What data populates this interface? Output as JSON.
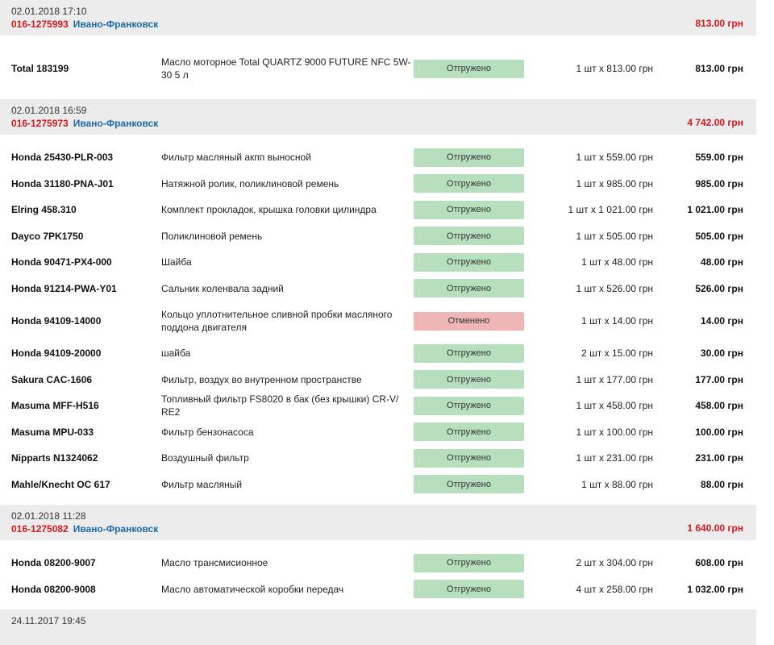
{
  "orders": [
    {
      "date": "02.01.2018 17:10",
      "id": "016-1275993",
      "city": "Ивано-Франковск",
      "total": "813.00 грн",
      "items": [
        {
          "part": "Total 183199",
          "desc": "Масло моторное Total QUARTZ 9000 FUTURE NFC 5W-30 5 л",
          "status": "Отгружено",
          "status_type": "ok",
          "qty": "1 шт x 813.00 грн",
          "sum": "813.00 грн"
        }
      ]
    },
    {
      "date": "02.01.2018 16:59",
      "id": "016-1275973",
      "city": "Ивано-Франковск",
      "total": "4 742.00 грн",
      "items": [
        {
          "part": "Honda 25430-PLR-003",
          "desc": "Фильтр масляный акпп выносной",
          "status": "Отгружено",
          "status_type": "ok",
          "qty": "1 шт x 559.00 грн",
          "sum": "559.00 грн"
        },
        {
          "part": "Honda 31180-PNA-J01",
          "desc": "Натяжной ролик, поликлиновой ремень",
          "status": "Отгружено",
          "status_type": "ok",
          "qty": "1 шт x 985.00 грн",
          "sum": "985.00 грн"
        },
        {
          "part": "Elring 458.310",
          "desc": "Комплект прокладок, крышка головки цилиндра",
          "status": "Отгружено",
          "status_type": "ok",
          "qty": "1 шт x 1 021.00 грн",
          "sum": "1 021.00 грн"
        },
        {
          "part": "Dayco 7PK1750",
          "desc": "Поликлиновой ремень",
          "status": "Отгружено",
          "status_type": "ok",
          "qty": "1 шт x 505.00 грн",
          "sum": "505.00 грн"
        },
        {
          "part": "Honda 90471-PX4-000",
          "desc": "Шайба",
          "status": "Отгружено",
          "status_type": "ok",
          "qty": "1 шт x 48.00 грн",
          "sum": "48.00 грн"
        },
        {
          "part": "Honda 91214-PWA-Y01",
          "desc": "Сальник коленвала задний",
          "status": "Отгружено",
          "status_type": "ok",
          "qty": "1 шт x 526.00 грн",
          "sum": "526.00 грн"
        },
        {
          "part": "Honda 94109-14000",
          "desc": "Кольцо уплотнительное сливной пробки масляного поддона двигателя",
          "status": "Отменено",
          "status_type": "cancel",
          "qty": "1 шт x 14.00 грн",
          "sum": "14.00 грн"
        },
        {
          "part": "Honda 94109-20000",
          "desc": "шайба",
          "status": "Отгружено",
          "status_type": "ok",
          "qty": "2 шт x 15.00 грн",
          "sum": "30.00 грн"
        },
        {
          "part": "Sakura CAC-1606",
          "desc": "Фильтр, воздух во внутренном пространстве",
          "status": "Отгружено",
          "status_type": "ok",
          "qty": "1 шт x 177.00 грн",
          "sum": "177.00 грн"
        },
        {
          "part": "Masuma MFF-H516",
          "desc": "Топливный фильтр FS8020 в бак (без крышки) CR-V/ RE2",
          "status": "Отгружено",
          "status_type": "ok",
          "qty": "1 шт x 458.00 грн",
          "sum": "458.00 грн"
        },
        {
          "part": "Masuma MPU-033",
          "desc": "Фильтр бензонасоса",
          "status": "Отгружено",
          "status_type": "ok",
          "qty": "1 шт x 100.00 грн",
          "sum": "100.00 грн"
        },
        {
          "part": "Nipparts N1324062",
          "desc": "Воздушный фильтр",
          "status": "Отгружено",
          "status_type": "ok",
          "qty": "1 шт x 231.00 грн",
          "sum": "231.00 грн"
        },
        {
          "part": "Mahle/Knecht OC 617",
          "desc": "Фильтр масляный",
          "status": "Отгружено",
          "status_type": "ok",
          "qty": "1 шт x 88.00 грн",
          "sum": "88.00 грн"
        }
      ]
    },
    {
      "date": "02.01.2018 11:28",
      "id": "016-1275082",
      "city": "Ивано-Франковск",
      "total": "1 640.00 грн",
      "items": [
        {
          "part": "Honda 08200-9007",
          "desc": "Масло трансмисионное",
          "status": "Отгружено",
          "status_type": "ok",
          "qty": "2 шт x 304.00 грн",
          "sum": "608.00 грн"
        },
        {
          "part": "Honda 08200-9008",
          "desc": "Масло автоматической коробки передач",
          "status": "Отгружено",
          "status_type": "ok",
          "qty": "4 шт x 258.00 грн",
          "sum": "1 032.00 грн"
        }
      ]
    },
    {
      "date": "24.11.2017 19:45",
      "id": "",
      "city": "",
      "total": "",
      "items": []
    }
  ],
  "colors": {
    "header_bg": "#ececec",
    "order_id": "#d0191f",
    "city": "#1f6aa5",
    "status_ok": "#b7dfbd",
    "status_cancel": "#efb6b8"
  }
}
